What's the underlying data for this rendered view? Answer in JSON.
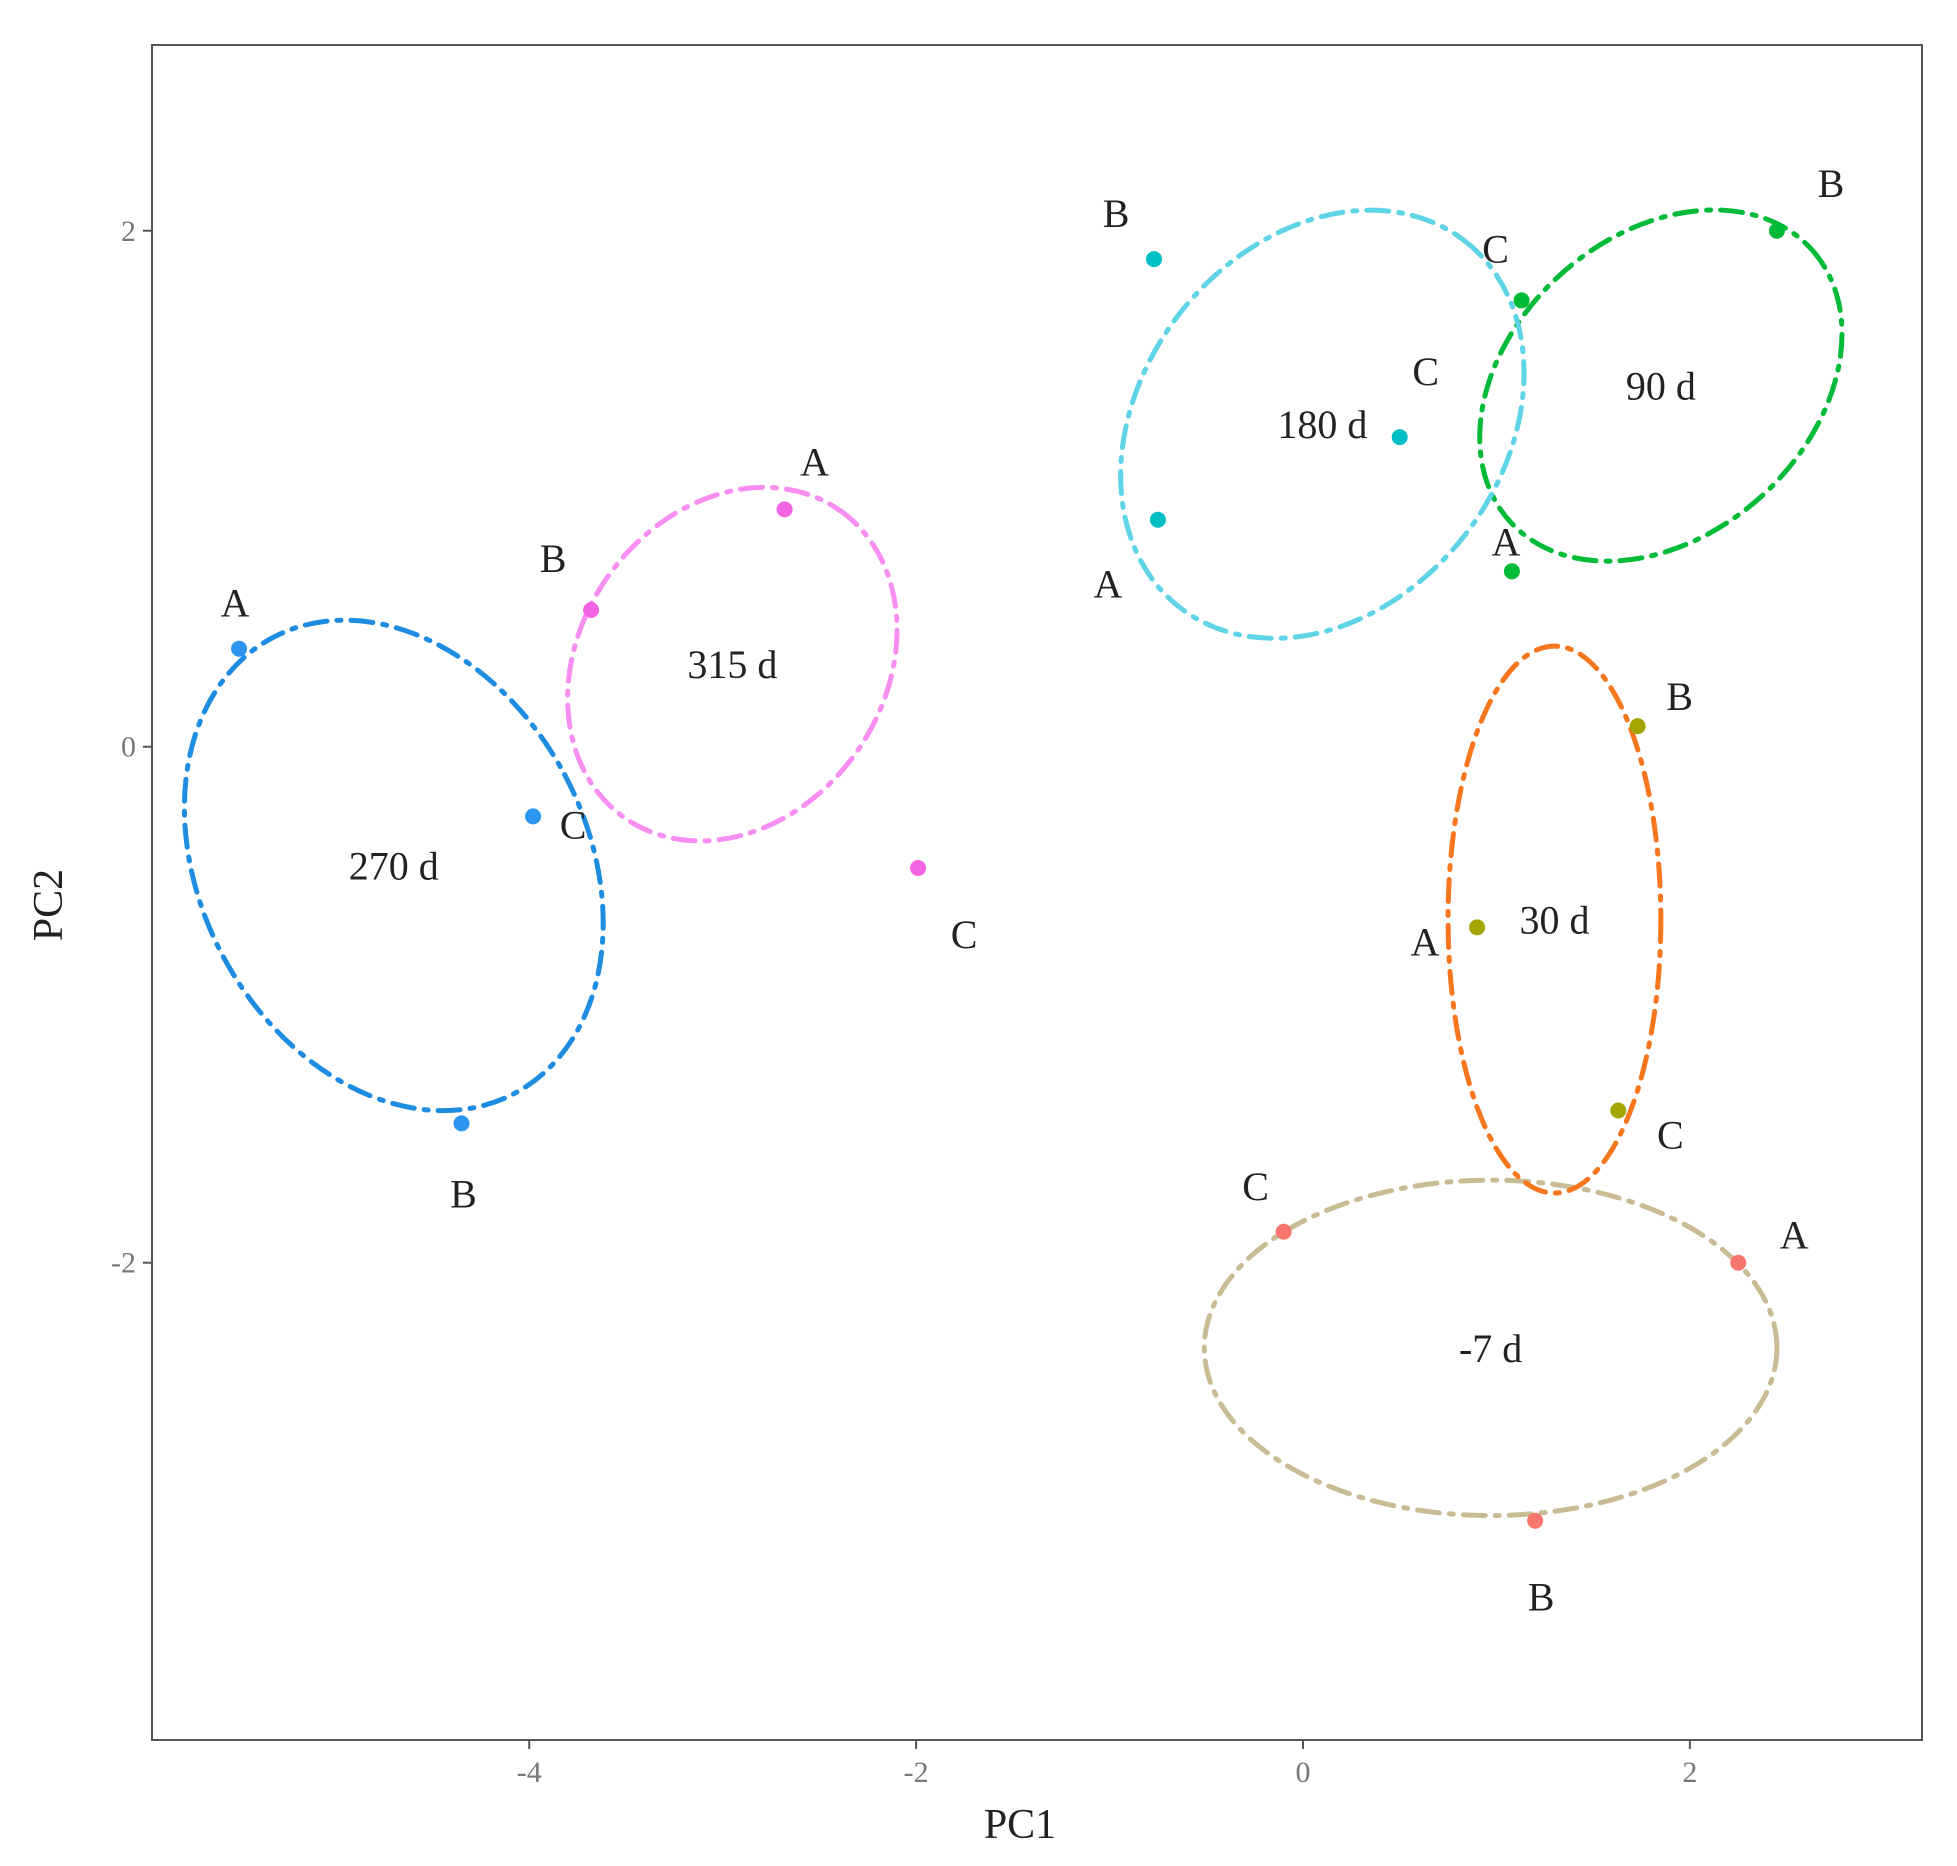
{
  "chart_data": {
    "type": "scatter",
    "xlabel": "PC1",
    "ylabel": "PC2",
    "xlim": [
      -5.95,
      3.2
    ],
    "ylim": [
      -3.85,
      2.72
    ],
    "xticks": [
      {
        "value": -4,
        "label": "-4"
      },
      {
        "value": -2,
        "label": "-2"
      },
      {
        "value": 0,
        "label": "0"
      },
      {
        "value": 2,
        "label": "2"
      }
    ],
    "yticks": [
      {
        "value": 2,
        "label": "2"
      },
      {
        "value": 0,
        "label": "0"
      },
      {
        "value": -2,
        "label": "-2"
      }
    ],
    "grid": false,
    "legend": "none",
    "groups": [
      {
        "name": "-7 d",
        "point_color": "#f8766d",
        "ellipse_color": "#c9bc94",
        "ellipse": {
          "cx": 0.97,
          "cy": -2.33,
          "rx": 1.48,
          "ry": 0.65,
          "angle": 0
        },
        "points": [
          {
            "label": "A",
            "x": 2.25,
            "y": -2.0
          },
          {
            "label": "B",
            "x": 1.2,
            "y": -3.0
          },
          {
            "label": "C",
            "x": -0.1,
            "y": -1.88
          }
        ]
      },
      {
        "name": "30 d",
        "point_color": "#a3a500",
        "ellipse_color": "#f8761e",
        "ellipse": {
          "cx": 1.3,
          "cy": -0.67,
          "rx": 0.55,
          "ry": 1.06,
          "angle": 0
        },
        "points": [
          {
            "label": "A",
            "x": 0.9,
            "y": -0.7
          },
          {
            "label": "B",
            "x": 1.73,
            "y": 0.08
          },
          {
            "label": "C",
            "x": 1.63,
            "y": -1.41
          }
        ]
      },
      {
        "name": "90 d",
        "point_color": "#00ba38",
        "ellipse_color": "#00ba38",
        "ellipse": {
          "cx": 1.85,
          "cy": 1.4,
          "rx": 1.05,
          "ry": 0.58,
          "angle": -42
        },
        "points": [
          {
            "label": "A",
            "x": 1.08,
            "y": 0.68
          },
          {
            "label": "B",
            "x": 2.45,
            "y": 2.0
          },
          {
            "label": "C",
            "x": 1.13,
            "y": 1.73
          }
        ]
      },
      {
        "name": "180 d",
        "point_color": "#00bfc4",
        "ellipse_color": "#5fd4e6",
        "ellipse": {
          "cx": 0.1,
          "cy": 1.25,
          "rx": 1.2,
          "ry": 0.7,
          "angle": -52
        },
        "points": [
          {
            "label": "A",
            "x": -0.75,
            "y": 0.88
          },
          {
            "label": "B",
            "x": -0.77,
            "y": 1.89
          },
          {
            "label": "C",
            "x": 0.5,
            "y": 1.2
          }
        ]
      },
      {
        "name": "270 d",
        "point_color": "#2c95f0",
        "ellipse_color": "#1e8ce0",
        "ellipse": {
          "cx": -4.7,
          "cy": -0.46,
          "rx": 1.0,
          "ry": 1.0,
          "angle": -28
        },
        "points": [
          {
            "label": "A",
            "x": -5.5,
            "y": 0.38
          },
          {
            "label": "B",
            "x": -4.35,
            "y": -1.46
          },
          {
            "label": "C",
            "x": -3.98,
            "y": -0.27
          }
        ]
      },
      {
        "name": "315 d",
        "point_color": "#f364e2",
        "ellipse_color": "#f98ef2",
        "ellipse": {
          "cx": -2.95,
          "cy": 0.32,
          "rx": 0.97,
          "ry": 0.59,
          "angle": -55
        },
        "points": [
          {
            "label": "A",
            "x": -2.68,
            "y": 0.92
          },
          {
            "label": "B",
            "x": -3.68,
            "y": 0.53
          },
          {
            "label": "C",
            "x": -1.99,
            "y": -0.47
          }
        ]
      }
    ]
  }
}
